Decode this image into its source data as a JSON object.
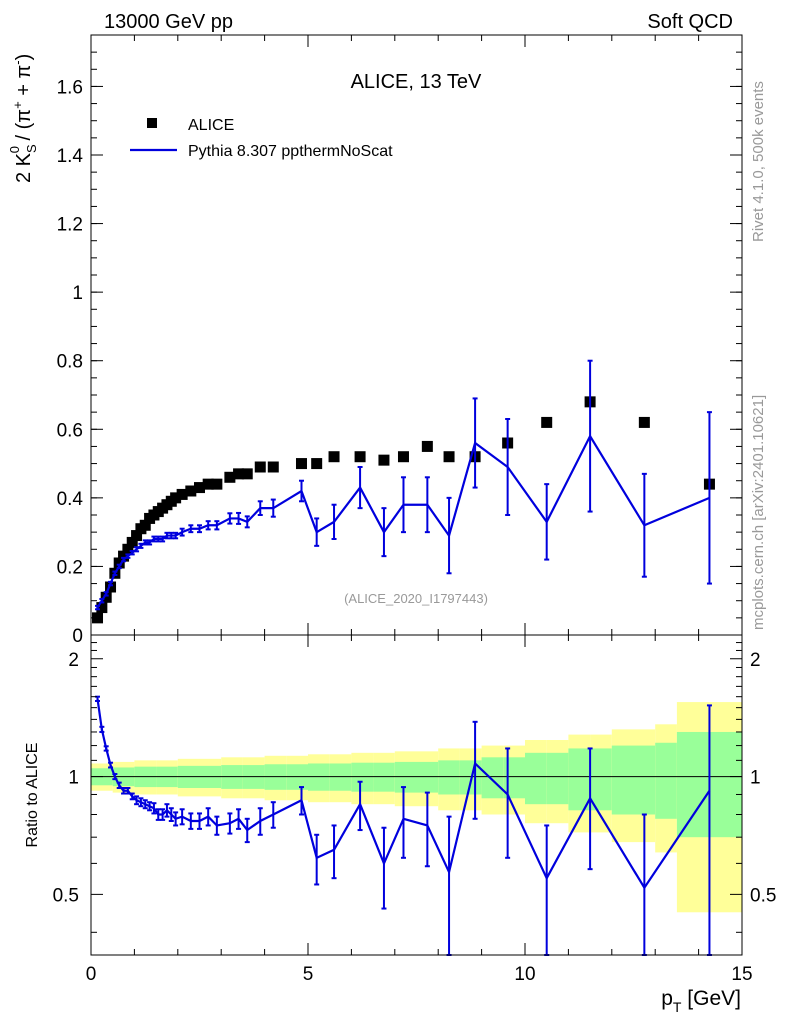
{
  "header": {
    "left": "13000 GeV pp",
    "right": "Soft QCD"
  },
  "side_labels": {
    "rivet": "Rivet 4.1.0,  500k events",
    "mcplots": "mcplots.cern.ch [arXiv:2401.10621]"
  },
  "colors": {
    "data": "#000000",
    "mc": "#0000dd",
    "band_inner": "#99ff99",
    "band_outer": "#ffff99"
  },
  "chart_data": [
    {
      "type": "scatter",
      "panel": "main",
      "title": "ALICE, 13 TeV",
      "ylabel_parts": {
        "a": "2 K",
        "b": "S",
        "c": "0",
        "d": " / (π",
        "e": "+",
        "f": " + π",
        "g": "-",
        "h": ")"
      },
      "xlim": [
        0,
        15
      ],
      "ylim": [
        0,
        1.75
      ],
      "yticks": [
        0,
        0.2,
        0.4,
        0.6,
        0.8,
        1,
        1.2,
        1.4,
        1.6
      ],
      "ytick_labels": [
        "0",
        "0.2",
        "0.4",
        "0.6",
        "0.8",
        "1",
        "1.2",
        "1.4",
        "1.6"
      ],
      "watermark": "(ALICE_2020_I1797443)",
      "legend": [
        {
          "name": "ALICE",
          "marker": "square"
        },
        {
          "name": "Pythia 8.307 ppthermNoScat",
          "marker": "line"
        }
      ],
      "series": [
        {
          "name": "ALICE",
          "x": [
            0.15,
            0.25,
            0.35,
            0.45,
            0.55,
            0.65,
            0.75,
            0.85,
            0.95,
            1.05,
            1.15,
            1.25,
            1.35,
            1.45,
            1.55,
            1.65,
            1.75,
            1.85,
            1.95,
            2.1,
            2.3,
            2.5,
            2.7,
            2.9,
            3.2,
            3.4,
            3.6,
            3.9,
            4.2,
            4.85,
            5.2,
            5.6,
            6.2,
            6.75,
            7.2,
            7.75,
            8.25,
            8.85,
            9.6,
            10.5,
            11.5,
            12.75,
            14.25
          ],
          "y": [
            0.05,
            0.08,
            0.11,
            0.14,
            0.18,
            0.21,
            0.23,
            0.25,
            0.27,
            0.29,
            0.31,
            0.32,
            0.34,
            0.35,
            0.36,
            0.37,
            0.38,
            0.39,
            0.4,
            0.41,
            0.42,
            0.43,
            0.44,
            0.44,
            0.46,
            0.47,
            0.47,
            0.49,
            0.49,
            0.5,
            0.5,
            0.52,
            0.52,
            0.51,
            0.52,
            0.55,
            0.52,
            0.52,
            0.56,
            0.62,
            0.68,
            0.62,
            0.44
          ]
        },
        {
          "name": "Pythia 8.307 ppthermNoScat",
          "x": [
            0.15,
            0.25,
            0.35,
            0.45,
            0.55,
            0.65,
            0.75,
            0.85,
            0.95,
            1.05,
            1.15,
            1.25,
            1.35,
            1.45,
            1.55,
            1.65,
            1.75,
            1.85,
            1.95,
            2.1,
            2.3,
            2.5,
            2.7,
            2.9,
            3.2,
            3.4,
            3.6,
            3.9,
            4.2,
            4.85,
            5.2,
            5.6,
            6.2,
            6.75,
            7.2,
            7.75,
            8.25,
            8.85,
            9.6,
            10.5,
            11.5,
            12.75,
            14.25
          ],
          "y": [
            0.08,
            0.1,
            0.12,
            0.15,
            0.18,
            0.2,
            0.22,
            0.23,
            0.24,
            0.25,
            0.26,
            0.27,
            0.27,
            0.28,
            0.28,
            0.28,
            0.29,
            0.29,
            0.29,
            0.3,
            0.31,
            0.31,
            0.32,
            0.32,
            0.34,
            0.34,
            0.33,
            0.37,
            0.37,
            0.42,
            0.3,
            0.33,
            0.43,
            0.3,
            0.38,
            0.38,
            0.29,
            0.56,
            0.49,
            0.33,
            0.58,
            0.32,
            0.4
          ],
          "yerr": [
            0.005,
            0.005,
            0.005,
            0.005,
            0.005,
            0.005,
            0.005,
            0.005,
            0.005,
            0.006,
            0.006,
            0.006,
            0.006,
            0.007,
            0.007,
            0.007,
            0.008,
            0.008,
            0.008,
            0.01,
            0.01,
            0.01,
            0.012,
            0.012,
            0.015,
            0.016,
            0.016,
            0.02,
            0.025,
            0.03,
            0.04,
            0.05,
            0.06,
            0.07,
            0.08,
            0.08,
            0.11,
            0.13,
            0.14,
            0.11,
            0.22,
            0.15,
            0.25
          ]
        }
      ]
    },
    {
      "type": "line",
      "panel": "ratio",
      "ylabel": "Ratio to ALICE",
      "xlabel_main": "p",
      "xlabel_sub": "T",
      "xlabel_unit": " [GeV]",
      "xlim": [
        0,
        15
      ],
      "ylim": [
        0.35,
        2.3
      ],
      "xticks": [
        0,
        5,
        10,
        15
      ],
      "xtick_labels": [
        "0",
        "5",
        "10",
        "15"
      ],
      "yticks": [
        0.5,
        1,
        2
      ],
      "ytick_labels": [
        "0.5",
        "1",
        "2"
      ],
      "bands": {
        "x_edges": [
          0,
          0.5,
          1,
          1.5,
          2,
          2.5,
          3,
          3.5,
          4,
          4.5,
          5,
          5.5,
          6,
          6.5,
          7,
          7.5,
          8,
          8.5,
          9,
          9.5,
          10,
          10.5,
          11,
          11.5,
          12,
          12.5,
          13,
          13.5,
          15
        ],
        "inner_half": [
          0.05,
          0.055,
          0.06,
          0.06,
          0.065,
          0.065,
          0.07,
          0.07,
          0.075,
          0.075,
          0.08,
          0.08,
          0.085,
          0.085,
          0.09,
          0.09,
          0.1,
          0.1,
          0.12,
          0.12,
          0.15,
          0.15,
          0.18,
          0.18,
          0.2,
          0.2,
          0.22,
          0.3
        ],
        "outer_half": [
          0.08,
          0.09,
          0.1,
          0.1,
          0.11,
          0.11,
          0.12,
          0.12,
          0.13,
          0.13,
          0.14,
          0.14,
          0.15,
          0.15,
          0.16,
          0.16,
          0.18,
          0.18,
          0.2,
          0.2,
          0.24,
          0.24,
          0.28,
          0.28,
          0.32,
          0.32,
          0.36,
          0.55
        ]
      },
      "series": [
        {
          "name": "Pythia 8.307 ppthermNoScat / ALICE",
          "x": [
            0.15,
            0.25,
            0.35,
            0.45,
            0.55,
            0.65,
            0.75,
            0.85,
            0.95,
            1.05,
            1.15,
            1.25,
            1.35,
            1.45,
            1.55,
            1.65,
            1.75,
            1.85,
            1.95,
            2.1,
            2.3,
            2.5,
            2.7,
            2.9,
            3.2,
            3.4,
            3.6,
            3.9,
            4.2,
            4.85,
            5.2,
            5.6,
            6.2,
            6.75,
            7.2,
            7.75,
            8.25,
            8.85,
            9.6,
            10.5,
            11.5,
            12.75,
            14.25
          ],
          "y": [
            1.58,
            1.32,
            1.18,
            1.07,
            1.0,
            0.95,
            0.92,
            0.92,
            0.89,
            0.87,
            0.86,
            0.85,
            0.84,
            0.83,
            0.8,
            0.8,
            0.82,
            0.8,
            0.78,
            0.79,
            0.77,
            0.77,
            0.79,
            0.75,
            0.76,
            0.78,
            0.73,
            0.77,
            0.8,
            0.87,
            0.62,
            0.65,
            0.85,
            0.6,
            0.78,
            0.75,
            0.57,
            1.08,
            0.9,
            0.55,
            0.88,
            0.52,
            0.92
          ],
          "yerr": [
            0.02,
            0.02,
            0.015,
            0.015,
            0.015,
            0.015,
            0.015,
            0.015,
            0.015,
            0.02,
            0.02,
            0.02,
            0.02,
            0.025,
            0.025,
            0.025,
            0.03,
            0.03,
            0.03,
            0.035,
            0.035,
            0.035,
            0.04,
            0.04,
            0.045,
            0.045,
            0.05,
            0.06,
            0.06,
            0.07,
            0.09,
            0.1,
            0.12,
            0.14,
            0.16,
            0.16,
            0.22,
            0.3,
            0.28,
            0.2,
            0.3,
            0.28,
            0.6
          ]
        }
      ]
    }
  ]
}
